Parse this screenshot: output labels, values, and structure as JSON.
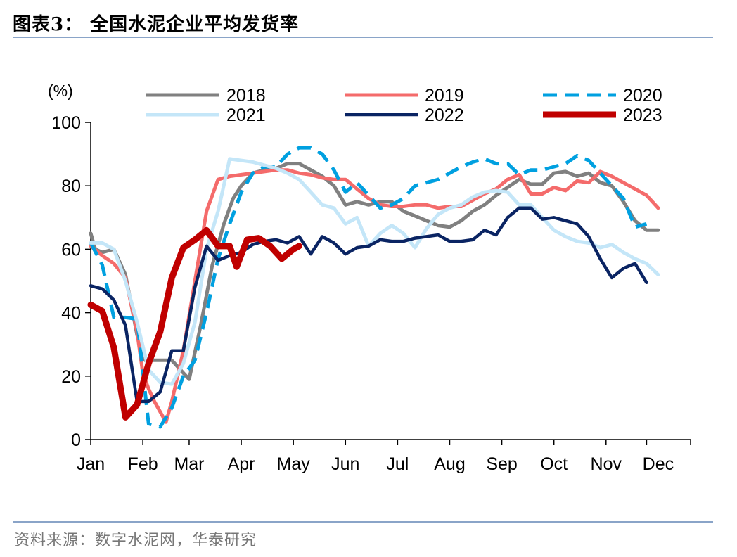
{
  "figure": {
    "title": "图表3：  全国水泥企业平均发货率",
    "source": "资料来源：数字水泥网，华泰研究"
  },
  "chart_data": {
    "type": "line",
    "title": "",
    "ylabel": "(%)",
    "xlabel": "",
    "ylim": [
      0,
      100
    ],
    "yticks": [
      0,
      20,
      40,
      60,
      80,
      100
    ],
    "xlim": [
      0,
      51.8
    ],
    "xtick_labels": [
      "Jan",
      "Feb",
      "Mar",
      "Apr",
      "May",
      "Jun",
      "Jul",
      "Aug",
      "Sep",
      "Oct",
      "Nov",
      "Dec"
    ],
    "xtick_label_positions": [
      0,
      4.5,
      8.5,
      13,
      17.5,
      22,
      26.5,
      31,
      35.5,
      40,
      44.5,
      49
    ],
    "xtick_mark_positions": [
      0,
      4.5,
      8.5,
      13,
      17.5,
      22,
      26.5,
      31,
      35.5,
      40,
      44.5,
      48,
      51.8
    ],
    "grid": false,
    "legend_position": "top",
    "series": [
      {
        "name": "2018",
        "color": "#808080",
        "dash": "solid",
        "width": 5,
        "points": [
          [
            0,
            65
          ],
          [
            0.4,
            60
          ],
          [
            1,
            59
          ],
          [
            2,
            60
          ],
          [
            3,
            52
          ],
          [
            4,
            33
          ],
          [
            4.7,
            25
          ],
          [
            5.5,
            25
          ],
          [
            6.5,
            25
          ],
          [
            7,
            25
          ],
          [
            8.5,
            19
          ],
          [
            9.5,
            36
          ],
          [
            10.5,
            55
          ],
          [
            11.5,
            68
          ],
          [
            12.3,
            76
          ],
          [
            13,
            80
          ],
          [
            14,
            84
          ],
          [
            15,
            85
          ],
          [
            16,
            85.5
          ],
          [
            17,
            87
          ],
          [
            18,
            87
          ],
          [
            19,
            85
          ],
          [
            20,
            83
          ],
          [
            21,
            80
          ],
          [
            22,
            74
          ],
          [
            23,
            75
          ],
          [
            24,
            74
          ],
          [
            25,
            75
          ],
          [
            26,
            75
          ],
          [
            27,
            72
          ],
          [
            28,
            70.5
          ],
          [
            29,
            69
          ],
          [
            30,
            67.5
          ],
          [
            31,
            67
          ],
          [
            32,
            69
          ],
          [
            33,
            72
          ],
          [
            34,
            74
          ],
          [
            35,
            77
          ],
          [
            36,
            79.5
          ],
          [
            37,
            82
          ],
          [
            38,
            80.5
          ],
          [
            39,
            80.5
          ],
          [
            40,
            84
          ],
          [
            41,
            84.5
          ],
          [
            42,
            83
          ],
          [
            43,
            84
          ],
          [
            44,
            81
          ],
          [
            45,
            80
          ],
          [
            46,
            75
          ],
          [
            47,
            69
          ],
          [
            48,
            66
          ],
          [
            49,
            66
          ]
        ]
      },
      {
        "name": "2019",
        "color": "#f46b6b",
        "dash": "solid",
        "width": 5,
        "points": [
          [
            0,
            61
          ],
          [
            1,
            58
          ],
          [
            2,
            55.5
          ],
          [
            3,
            51
          ],
          [
            4,
            34
          ],
          [
            4.5,
            21
          ],
          [
            5,
            16
          ],
          [
            5.5,
            12
          ],
          [
            6.5,
            5.5
          ],
          [
            7,
            12
          ],
          [
            8,
            28
          ],
          [
            9,
            50
          ],
          [
            10,
            72
          ],
          [
            11,
            82
          ],
          [
            12,
            83
          ],
          [
            13,
            83.5
          ],
          [
            14,
            84
          ],
          [
            15,
            84.5
          ],
          [
            16,
            85
          ],
          [
            17,
            85
          ],
          [
            18,
            84
          ],
          [
            19,
            83.5
          ],
          [
            20,
            82.5
          ],
          [
            21,
            82
          ],
          [
            22,
            82
          ],
          [
            23,
            79
          ],
          [
            24,
            76
          ],
          [
            25,
            74
          ],
          [
            26,
            73.5
          ],
          [
            27,
            73.5
          ],
          [
            28,
            74
          ],
          [
            29,
            74
          ],
          [
            30,
            73
          ],
          [
            31,
            73.5
          ],
          [
            32,
            73.5
          ],
          [
            33,
            75.5
          ],
          [
            34,
            77.5
          ],
          [
            35,
            79
          ],
          [
            36,
            82
          ],
          [
            37,
            83.5
          ],
          [
            38,
            77.5
          ],
          [
            39,
            77.5
          ],
          [
            40,
            79.5
          ],
          [
            41,
            78.5
          ],
          [
            42,
            81.5
          ],
          [
            43,
            81
          ],
          [
            44,
            84.5
          ],
          [
            45,
            83
          ],
          [
            46,
            81
          ],
          [
            47,
            79
          ],
          [
            48,
            77
          ],
          [
            49,
            73
          ]
        ]
      },
      {
        "name": "2020",
        "color": "#00a0e0",
        "dash": "dashed",
        "width": 5,
        "points": [
          [
            0,
            62
          ],
          [
            1,
            55
          ],
          [
            2,
            38.5
          ],
          [
            3,
            38.5
          ],
          [
            4,
            38
          ],
          [
            5,
            5
          ],
          [
            6,
            4
          ],
          [
            7,
            10
          ],
          [
            8,
            20
          ],
          [
            9,
            25
          ],
          [
            10,
            40
          ],
          [
            11,
            57
          ],
          [
            12,
            68
          ],
          [
            13,
            78
          ],
          [
            14,
            84
          ],
          [
            15,
            86
          ],
          [
            16,
            86
          ],
          [
            17,
            90
          ],
          [
            18,
            92
          ],
          [
            19,
            92
          ],
          [
            20,
            90
          ],
          [
            21,
            85
          ],
          [
            22,
            78
          ],
          [
            23,
            81
          ],
          [
            24,
            77
          ],
          [
            25,
            73
          ],
          [
            26,
            74
          ],
          [
            27,
            76
          ],
          [
            28,
            80
          ],
          [
            29,
            81
          ],
          [
            30,
            82
          ],
          [
            31,
            84
          ],
          [
            32,
            86
          ],
          [
            33,
            87.5
          ],
          [
            34,
            88.5
          ],
          [
            35,
            87
          ],
          [
            36,
            87
          ],
          [
            37,
            83.5
          ],
          [
            38,
            85
          ],
          [
            39,
            85
          ],
          [
            40,
            86
          ],
          [
            41,
            87
          ],
          [
            42,
            89.5
          ],
          [
            43,
            88
          ],
          [
            44,
            84
          ],
          [
            45,
            80
          ],
          [
            46,
            76
          ],
          [
            47,
            67
          ],
          [
            48,
            68
          ]
        ]
      },
      {
        "name": "2021",
        "color": "#c4e6f8",
        "dash": "solid",
        "width": 5,
        "points": [
          [
            0,
            62
          ],
          [
            1,
            62
          ],
          [
            2,
            60
          ],
          [
            3,
            50
          ],
          [
            4,
            37
          ],
          [
            5,
            22
          ],
          [
            6,
            18
          ],
          [
            7,
            17.5
          ],
          [
            8,
            24
          ],
          [
            9,
            37
          ],
          [
            10,
            60
          ],
          [
            11,
            72
          ],
          [
            12,
            88.5
          ],
          [
            13,
            88
          ],
          [
            14,
            87.5
          ],
          [
            15,
            86.5
          ],
          [
            16,
            85.5
          ],
          [
            17,
            84
          ],
          [
            18,
            82
          ],
          [
            19,
            78
          ],
          [
            20,
            74
          ],
          [
            21,
            73
          ],
          [
            22,
            68
          ],
          [
            23,
            70
          ],
          [
            24,
            61
          ],
          [
            25,
            65
          ],
          [
            26,
            67.5
          ],
          [
            27,
            65
          ],
          [
            28,
            60.5
          ],
          [
            29,
            66.5
          ],
          [
            30,
            71
          ],
          [
            31,
            73
          ],
          [
            32,
            74
          ],
          [
            33,
            76.5
          ],
          [
            34,
            78
          ],
          [
            35,
            78.5
          ],
          [
            36,
            78
          ],
          [
            37,
            74
          ],
          [
            38,
            74
          ],
          [
            39,
            70
          ],
          [
            40,
            66
          ],
          [
            41,
            64
          ],
          [
            42,
            62.5
          ],
          [
            43,
            62
          ],
          [
            44,
            60.5
          ],
          [
            45,
            61.5
          ],
          [
            46,
            59
          ],
          [
            47,
            57
          ],
          [
            48,
            55.5
          ],
          [
            49,
            52
          ]
        ]
      },
      {
        "name": "2022",
        "color": "#0a2463",
        "dash": "solid",
        "width": 4.5,
        "points": [
          [
            0,
            48.5
          ],
          [
            1,
            47.5
          ],
          [
            2,
            44
          ],
          [
            3,
            36
          ],
          [
            4,
            12
          ],
          [
            5,
            12
          ],
          [
            6,
            15
          ],
          [
            7,
            28
          ],
          [
            8,
            28
          ],
          [
            9,
            48
          ],
          [
            10,
            61
          ],
          [
            11,
            56.5
          ],
          [
            12,
            58
          ],
          [
            13,
            59
          ],
          [
            14,
            61.5
          ],
          [
            15,
            62.5
          ],
          [
            16,
            63
          ],
          [
            17,
            62
          ],
          [
            18,
            64
          ],
          [
            19,
            58.5
          ],
          [
            20,
            64
          ],
          [
            21,
            62
          ],
          [
            22,
            58.5
          ],
          [
            23,
            60.5
          ],
          [
            24,
            61
          ],
          [
            25,
            63
          ],
          [
            26,
            62.5
          ],
          [
            27,
            62.5
          ],
          [
            28,
            63.5
          ],
          [
            29,
            64
          ],
          [
            30,
            64.5
          ],
          [
            31,
            62.5
          ],
          [
            32,
            62.5
          ],
          [
            33,
            63
          ],
          [
            34,
            66
          ],
          [
            35,
            64.5
          ],
          [
            36,
            70
          ],
          [
            37,
            73
          ],
          [
            38,
            73
          ],
          [
            39,
            69.5
          ],
          [
            40,
            70
          ],
          [
            41,
            69
          ],
          [
            42,
            68
          ],
          [
            43,
            64
          ],
          [
            44,
            57
          ],
          [
            45,
            51
          ],
          [
            46,
            54
          ],
          [
            47,
            55.5
          ],
          [
            48,
            49.5
          ]
        ]
      },
      {
        "name": "2023",
        "color": "#c00000",
        "dash": "solid",
        "width": 9,
        "points": [
          [
            0,
            42.5
          ],
          [
            1,
            40.5
          ],
          [
            2,
            29
          ],
          [
            3,
            7
          ],
          [
            4,
            11
          ],
          [
            5,
            24
          ],
          [
            6,
            34
          ],
          [
            7,
            51
          ],
          [
            8,
            60.5
          ],
          [
            9,
            63
          ],
          [
            10,
            66
          ],
          [
            11,
            61
          ],
          [
            12,
            61
          ],
          [
            12.6,
            54.5
          ],
          [
            13.5,
            63
          ],
          [
            14.5,
            63.5
          ],
          [
            15.5,
            61
          ],
          [
            16.5,
            57
          ],
          [
            17.5,
            60
          ],
          [
            18,
            61
          ]
        ]
      }
    ]
  }
}
